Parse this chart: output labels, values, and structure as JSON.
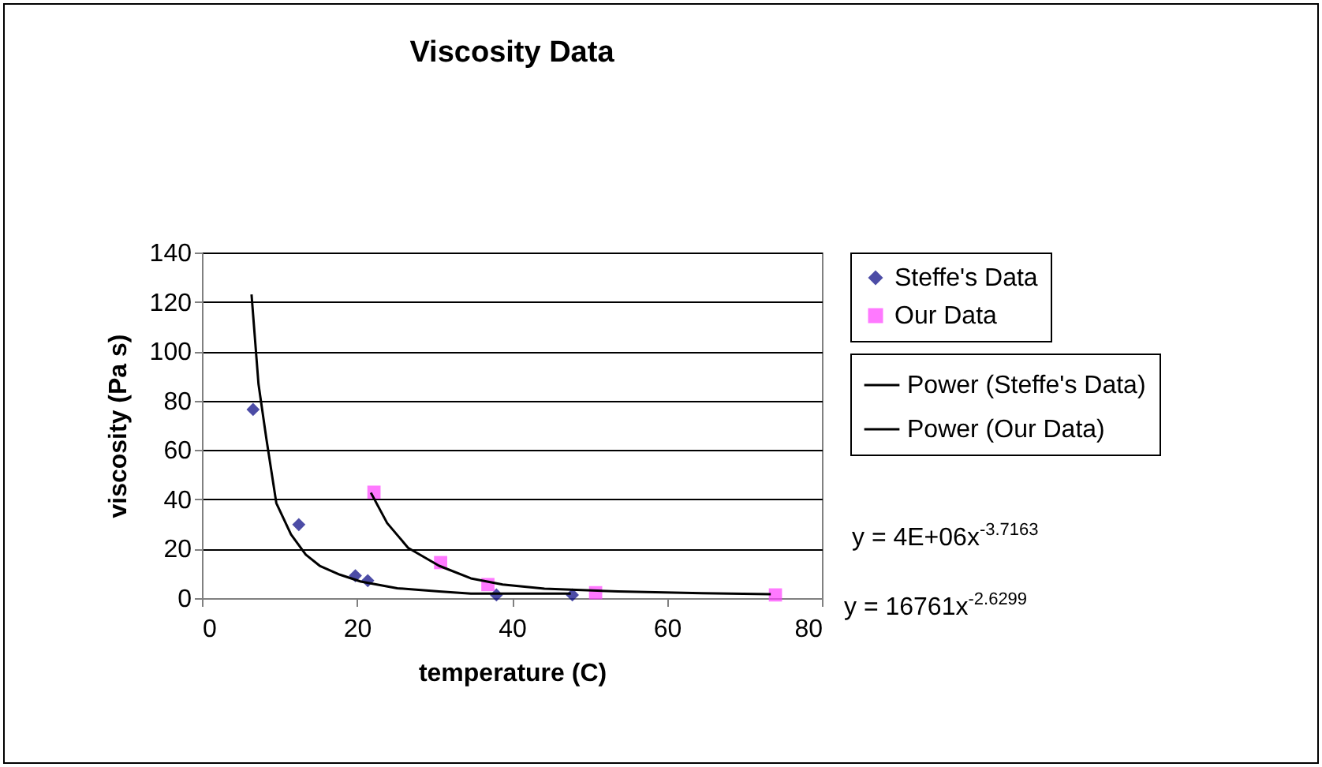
{
  "chart_data": {
    "type": "scatter",
    "title": "Viscosity Data",
    "xlabel": "temperature (C)",
    "ylabel": "viscosity (Pa s)",
    "xlim": [
      0,
      80
    ],
    "xticks": [
      0,
      20,
      40,
      60,
      80
    ],
    "ylim": [
      0,
      140
    ],
    "yticks": [
      0,
      20,
      40,
      60,
      80,
      100,
      120,
      140
    ],
    "grid": "y",
    "legend": "right",
    "series": [
      {
        "name": "Steffe's Data",
        "type": "scatter",
        "marker": "diamond",
        "color": "#000080",
        "x": [
          6.6,
          12.5,
          19.8,
          21.4,
          38,
          47.8
        ],
        "values": [
          76.4,
          29.8,
          9.1,
          7.1,
          1.3,
          1.3
        ]
      },
      {
        "name": "Our Data",
        "type": "scatter",
        "marker": "square",
        "color": "#ff40ff",
        "x": [
          22.2,
          30.8,
          36.9,
          50.8,
          74
        ],
        "values": [
          42.9,
          14.4,
          5.5,
          2.2,
          1.3
        ]
      },
      {
        "name": "Power (Steffe's Data)",
        "type": "line",
        "color": "#000000",
        "x": [
          6.4,
          7.3,
          8.3,
          9.6,
          11.5,
          13.4,
          15.2,
          17.8,
          20.5,
          25.2,
          30.6,
          34.7,
          47.6
        ],
        "values": [
          123,
          86.7,
          64.9,
          38.5,
          25.8,
          17.6,
          13.1,
          9.5,
          6.7,
          4.0,
          2.7,
          1.8,
          1.8
        ]
      },
      {
        "name": "Power (Our Data)",
        "type": "line",
        "color": "#000000",
        "x": [
          21.8,
          23.9,
          26.6,
          30.6,
          34.7,
          38.8,
          44.2,
          53.7,
          64.5,
          73.4
        ],
        "values": [
          42.7,
          30.4,
          20.4,
          13.1,
          8.0,
          5.5,
          3.8,
          2.7,
          2.0,
          1.6
        ]
      }
    ],
    "annotations": [
      "y = 4E+06x$^{-3.7163}$",
      "y = 16761x$^{-2.6299}$"
    ]
  }
}
